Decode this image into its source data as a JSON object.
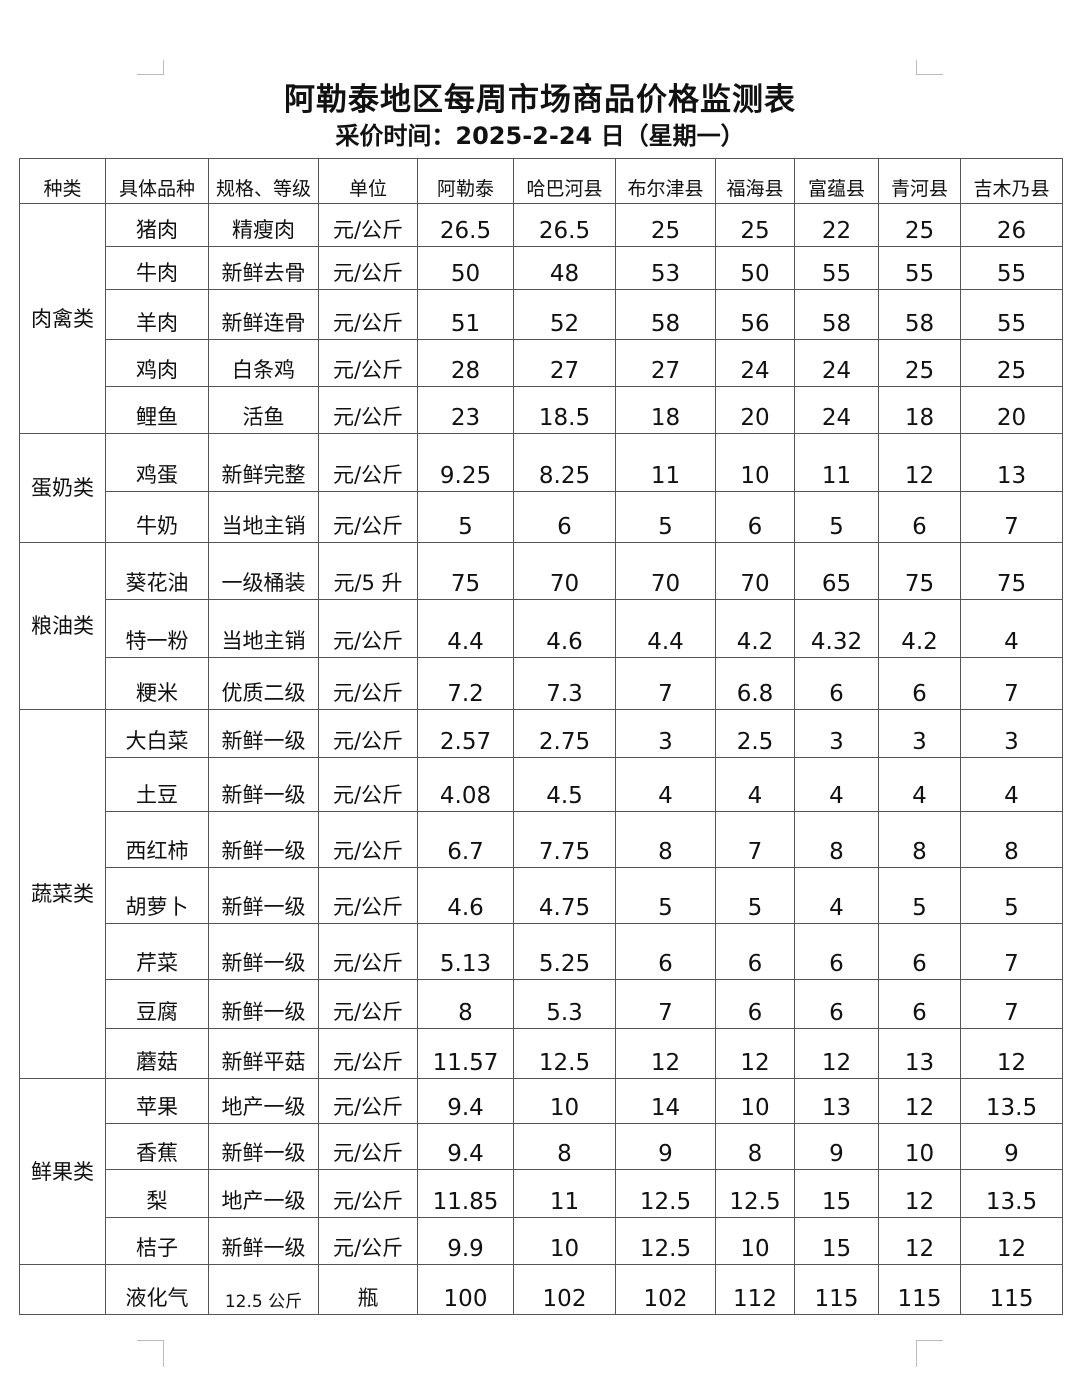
{
  "title": "阿勒泰地区每周市场商品价格监测表",
  "subtitle": "采价时间：2025-2-24 日（星期一）",
  "headers": [
    "种类",
    "具体品种",
    "规格、等级",
    "单位",
    "阿勒泰",
    "哈巴河县",
    "布尔津县",
    "福海县",
    "富蕴县",
    "青河县",
    "吉木乃县"
  ],
  "groups": [
    {
      "category": "肉禽类",
      "rows": [
        {
          "item": "猪肉",
          "spec": "精瘦肉",
          "unit": "元/公斤",
          "prices": [
            "26.5",
            "26.5",
            "25",
            "25",
            "22",
            "25",
            "26"
          ]
        },
        {
          "item": "牛肉",
          "spec": "新鲜去骨",
          "unit": "元/公斤",
          "prices": [
            "50",
            "48",
            "53",
            "50",
            "55",
            "55",
            "55"
          ]
        },
        {
          "item": "羊肉",
          "spec": "新鲜连骨",
          "unit": "元/公斤",
          "prices": [
            "51",
            "52",
            "58",
            "56",
            "58",
            "58",
            "55"
          ]
        },
        {
          "item": "鸡肉",
          "spec": "白条鸡",
          "unit": "元/公斤",
          "prices": [
            "28",
            "27",
            "27",
            "24",
            "24",
            "25",
            "25"
          ]
        },
        {
          "item": "鲤鱼",
          "spec": "活鱼",
          "unit": "元/公斤",
          "prices": [
            "23",
            "18.5",
            "18",
            "20",
            "24",
            "18",
            "20"
          ]
        }
      ]
    },
    {
      "category": "蛋奶类",
      "rows": [
        {
          "item": "鸡蛋",
          "spec": "新鲜完整",
          "unit": "元/公斤",
          "prices": [
            "9.25",
            "8.25",
            "11",
            "10",
            "11",
            "12",
            "13"
          ]
        },
        {
          "item": "牛奶",
          "spec": "当地主销",
          "unit": "元/公斤",
          "prices": [
            "5",
            "6",
            "5",
            "6",
            "5",
            "6",
            "7"
          ]
        }
      ]
    },
    {
      "category": "粮油类",
      "rows": [
        {
          "item": "葵花油",
          "spec": "一级桶装",
          "unit": "元/5 升",
          "prices": [
            "75",
            "70",
            "70",
            "70",
            "65",
            "75",
            "75"
          ]
        },
        {
          "item": "特一粉",
          "spec": "当地主销",
          "unit": "元/公斤",
          "prices": [
            "4.4",
            "4.6",
            "4.4",
            "4.2",
            "4.32",
            "4.2",
            "4"
          ]
        },
        {
          "item": "粳米",
          "spec": "优质二级",
          "unit": "元/公斤",
          "prices": [
            "7.2",
            "7.3",
            "7",
            "6.8",
            "6",
            "6",
            "7"
          ]
        }
      ]
    },
    {
      "category": "蔬菜类",
      "rows": [
        {
          "item": "大白菜",
          "spec": "新鲜一级",
          "unit": "元/公斤",
          "prices": [
            "2.57",
            "2.75",
            "3",
            "2.5",
            "3",
            "3",
            "3"
          ]
        },
        {
          "item": "土豆",
          "spec": "新鲜一级",
          "unit": "元/公斤",
          "prices": [
            "4.08",
            "4.5",
            "4",
            "4",
            "4",
            "4",
            "4"
          ]
        },
        {
          "item": "西红柿",
          "spec": "新鲜一级",
          "unit": "元/公斤",
          "prices": [
            "6.7",
            "7.75",
            "8",
            "7",
            "8",
            "8",
            "8"
          ]
        },
        {
          "item": "胡萝卜",
          "spec": "新鲜一级",
          "unit": "元/公斤",
          "prices": [
            "4.6",
            "4.75",
            "5",
            "5",
            "4",
            "5",
            "5"
          ]
        },
        {
          "item": "芹菜",
          "spec": "新鲜一级",
          "unit": "元/公斤",
          "prices": [
            "5.13",
            "5.25",
            "6",
            "6",
            "6",
            "6",
            "7"
          ]
        },
        {
          "item": "豆腐",
          "spec": "新鲜一级",
          "unit": "元/公斤",
          "prices": [
            "8",
            "5.3",
            "7",
            "6",
            "6",
            "6",
            "7"
          ]
        },
        {
          "item": "蘑菇",
          "spec": "新鲜平菇",
          "unit": "元/公斤",
          "prices": [
            "11.57",
            "12.5",
            "12",
            "12",
            "12",
            "13",
            "12"
          ]
        }
      ]
    },
    {
      "category": "鲜果类",
      "rows": [
        {
          "item": "苹果",
          "spec": "地产一级",
          "unit": "元/公斤",
          "prices": [
            "9.4",
            "10",
            "14",
            "10",
            "13",
            "12",
            "13.5"
          ]
        },
        {
          "item": "香蕉",
          "spec": "新鲜一级",
          "unit": "元/公斤",
          "prices": [
            "9.4",
            "8",
            "9",
            "8",
            "9",
            "10",
            "9"
          ]
        },
        {
          "item": "梨",
          "spec": "地产一级",
          "unit": "元/公斤",
          "prices": [
            "11.85",
            "11",
            "12.5",
            "12.5",
            "15",
            "12",
            "13.5"
          ]
        },
        {
          "item": "桔子",
          "spec": "新鲜一级",
          "unit": "元/公斤",
          "prices": [
            "9.9",
            "10",
            "12.5",
            "10",
            "15",
            "12",
            "12"
          ]
        }
      ]
    },
    {
      "category": "",
      "rows": [
        {
          "item": "液化气",
          "spec": "12.5 公斤",
          "unit": "瓶",
          "prices": [
            "100",
            "102",
            "102",
            "112",
            "115",
            "115",
            "115"
          ]
        }
      ]
    }
  ]
}
